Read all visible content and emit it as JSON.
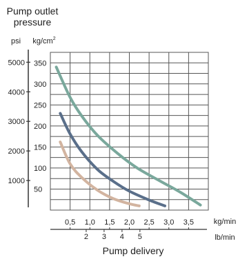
{
  "chart_data": {
    "type": "line",
    "title": "Pump outlet pressure",
    "left_units": {
      "primary": "psi",
      "secondary": "kg/cm",
      "secondary_superscript": "2"
    },
    "left_axis_psi": {
      "ticks": [
        "5000",
        "4000",
        "3000",
        "2000",
        "1000"
      ],
      "tick_values": [
        5000,
        4000,
        3000,
        2000,
        1000
      ]
    },
    "inner_axis_kgcm2": {
      "ticks": [
        "350",
        "300",
        "250",
        "200",
        "150",
        "100",
        "50"
      ],
      "tick_values": [
        350,
        300,
        250,
        200,
        150,
        100,
        50
      ],
      "ylim": [
        0,
        375
      ]
    },
    "x_axis_kgmin": {
      "ticks": [
        "0,5",
        "1,0",
        "1,5",
        "2,0",
        "2,5",
        "3,0",
        "3,5"
      ],
      "tick_values": [
        0.5,
        1.0,
        1.5,
        2.0,
        2.5,
        3.0,
        3.5
      ],
      "unit": "kg/min",
      "xlim": [
        0,
        4.0
      ]
    },
    "x_axis_lbmin": {
      "ticks": [
        "2",
        "3",
        "4",
        "5"
      ],
      "tick_values": [
        2,
        3,
        4,
        5
      ],
      "unit": "lb/min"
    },
    "xlabel": "Pump delivery",
    "grid": true,
    "series": [
      {
        "color": "#7aa89c",
        "x": [
          0.15,
          0.5,
          0.8,
          1.2,
          1.7,
          2.2,
          2.8,
          3.3,
          3.8
        ],
        "y": [
          340,
          268,
          223,
          177,
          135,
          100,
          68,
          42,
          12
        ]
      },
      {
        "color": "#5a6f8a",
        "x": [
          0.25,
          0.5,
          0.8,
          1.2,
          1.6,
          2.0,
          2.5,
          2.9
        ],
        "y": [
          230,
          181,
          138,
          96,
          68,
          45,
          24,
          10
        ]
      },
      {
        "color": "#d2b4a0",
        "x": [
          0.25,
          0.5,
          0.8,
          1.2,
          1.6,
          2.0,
          2.25
        ],
        "y": [
          162,
          110,
          77,
          47,
          27,
          15,
          10
        ]
      }
    ]
  }
}
